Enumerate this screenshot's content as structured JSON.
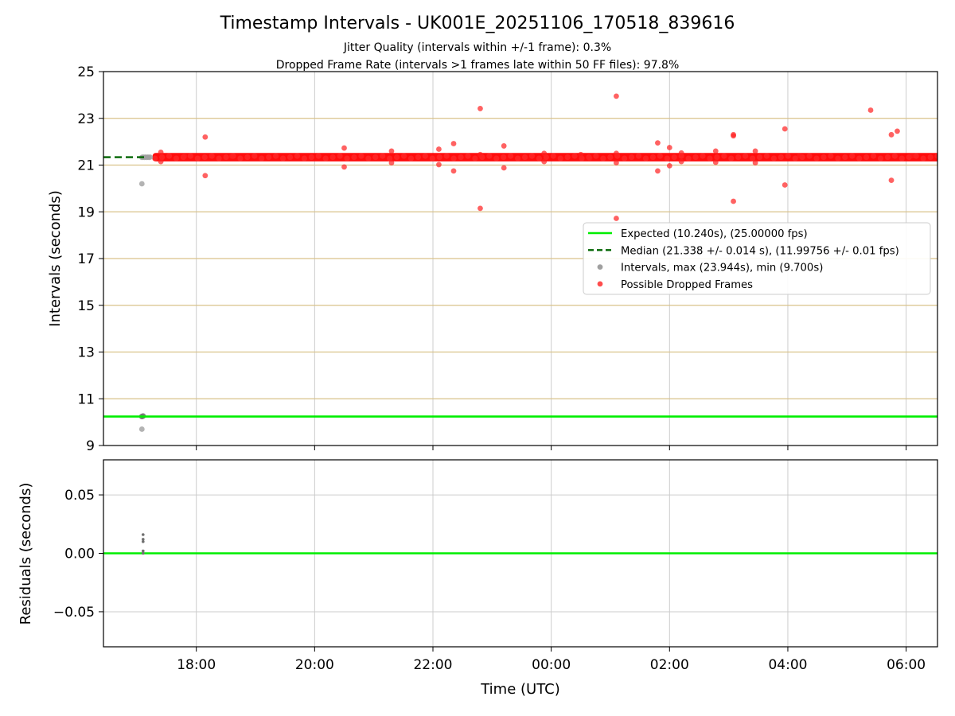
{
  "title": "Timestamp Intervals - UK001E_20251106_170518_839616",
  "subtitle_1": "Jitter Quality (intervals within +/-1 frame): 0.3%",
  "subtitle_2": "Dropped Frame Rate (intervals >1 frames late within 50 FF files): 97.8%",
  "colors": {
    "expected": "#00ee00",
    "median": "#006400",
    "intervals": "#a0a0a0",
    "dropped": "#ff2020",
    "frame_lines": "#d9c28a",
    "grid": "#cccccc"
  },
  "chart_data": [
    {
      "type": "scatter",
      "panel": "top",
      "xlabel": "",
      "ylabel": "Intervals (seconds)",
      "x_unit": "hours (UTC, continuous from 2025-11-06 00:00; 24+ = next day)",
      "xlim": [
        16.43,
        30.53
      ],
      "ylim": [
        9,
        25
      ],
      "yticks": [
        9,
        11,
        13,
        15,
        17,
        19,
        21,
        23,
        25
      ],
      "xticks": [
        18,
        20,
        22,
        24,
        26,
        28,
        30
      ],
      "xtick_labels": [
        "18:00",
        "20:00",
        "22:00",
        "00:00",
        "02:00",
        "04:00",
        "06:00"
      ],
      "grid": true,
      "frame_lines_y": [
        10.24,
        11.0,
        13.0,
        15.0,
        17.0,
        19.0,
        21.0,
        23.0
      ],
      "legend_position": "right",
      "legend": [
        {
          "label": "Expected (10.240s), (25.00000 fps)",
          "kind": "line"
        },
        {
          "label": "Median (21.338 +/- 0.014 s), (11.99756 +/- 0.01 fps)",
          "kind": "dashed"
        },
        {
          "label": "Intervals, max (23.944s), min (9.700s)",
          "kind": "gray-dot"
        },
        {
          "label": "Possible Dropped Frames",
          "kind": "red-dot"
        }
      ],
      "expected_y": 10.24,
      "median_y": 21.338,
      "median_x_range": [
        16.43,
        17.18
      ],
      "dropped_band": {
        "x_start": 17.3,
        "x_end": 30.53,
        "y_center": 21.338,
        "y_halfwidth": 0.08
      },
      "series": [
        {
          "name": "Intervals, max (23.944s), min (9.700s)",
          "points": [
            [
              17.08,
              21.33
            ],
            [
              17.1,
              21.34
            ],
            [
              17.12,
              21.33
            ],
            [
              17.14,
              21.34
            ],
            [
              17.16,
              21.33
            ],
            [
              17.18,
              21.34
            ],
            [
              17.2,
              21.33
            ],
            [
              17.22,
              21.34
            ],
            [
              17.08,
              20.2
            ],
            [
              17.08,
              10.24
            ],
            [
              17.1,
              10.26
            ],
            [
              17.08,
              9.7
            ]
          ]
        },
        {
          "name": "Possible Dropped Frames",
          "points": [
            [
              17.4,
              21.55
            ],
            [
              17.4,
              21.15
            ],
            [
              17.8,
              21.38
            ],
            [
              18.15,
              22.2
            ],
            [
              18.15,
              20.55
            ],
            [
              18.6,
              21.38
            ],
            [
              20.5,
              21.73
            ],
            [
              20.5,
              20.92
            ],
            [
              21.3,
              21.6
            ],
            [
              21.3,
              21.1
            ],
            [
              22.1,
              21.68
            ],
            [
              22.1,
              21.02
            ],
            [
              22.35,
              21.92
            ],
            [
              22.35,
              20.75
            ],
            [
              22.8,
              23.42
            ],
            [
              22.8,
              21.45
            ],
            [
              22.8,
              19.15
            ],
            [
              23.2,
              21.82
            ],
            [
              23.2,
              20.88
            ],
            [
              23.88,
              21.5
            ],
            [
              23.88,
              21.15
            ],
            [
              24.5,
              21.45
            ],
            [
              24.65,
              21.3
            ],
            [
              25.1,
              23.95
            ],
            [
              25.1,
              21.5
            ],
            [
              25.1,
              21.1
            ],
            [
              25.1,
              18.72
            ],
            [
              25.8,
              21.95
            ],
            [
              25.8,
              20.75
            ],
            [
              26.0,
              21.75
            ],
            [
              26.0,
              20.97
            ],
            [
              26.2,
              21.52
            ],
            [
              26.2,
              21.15
            ],
            [
              26.78,
              21.6
            ],
            [
              26.78,
              21.12
            ],
            [
              27.08,
              22.3
            ],
            [
              27.08,
              22.25
            ],
            [
              27.08,
              19.45
            ],
            [
              27.45,
              21.6
            ],
            [
              27.45,
              21.1
            ],
            [
              27.95,
              22.55
            ],
            [
              27.95,
              20.15
            ],
            [
              28.2,
              21.4
            ],
            [
              29.4,
              23.35
            ],
            [
              29.75,
              22.3
            ],
            [
              29.75,
              20.35
            ],
            [
              29.85,
              22.45
            ],
            [
              30.1,
              21.4
            ]
          ]
        }
      ]
    },
    {
      "type": "scatter",
      "panel": "bottom",
      "xlabel": "Time (UTC)",
      "ylabel": "Residuals (seconds)",
      "xlim": [
        16.43,
        30.53
      ],
      "ylim": [
        -0.08,
        0.08
      ],
      "yticks": [
        -0.05,
        0.0,
        0.05
      ],
      "ytick_labels": [
        "−0.05",
        "0.00",
        "0.05"
      ],
      "xticks": [
        18,
        20,
        22,
        24,
        26,
        28,
        30
      ],
      "xtick_labels": [
        "18:00",
        "20:00",
        "22:00",
        "00:00",
        "02:00",
        "04:00",
        "06:00"
      ],
      "grid": true,
      "expected_y": 0.0,
      "series": [
        {
          "name": "",
          "points": [
            [
              17.1,
              0.016
            ],
            [
              17.1,
              0.012
            ],
            [
              17.1,
              0.01
            ],
            [
              17.1,
              0.002
            ],
            [
              17.1,
              0.0
            ]
          ]
        }
      ]
    }
  ]
}
